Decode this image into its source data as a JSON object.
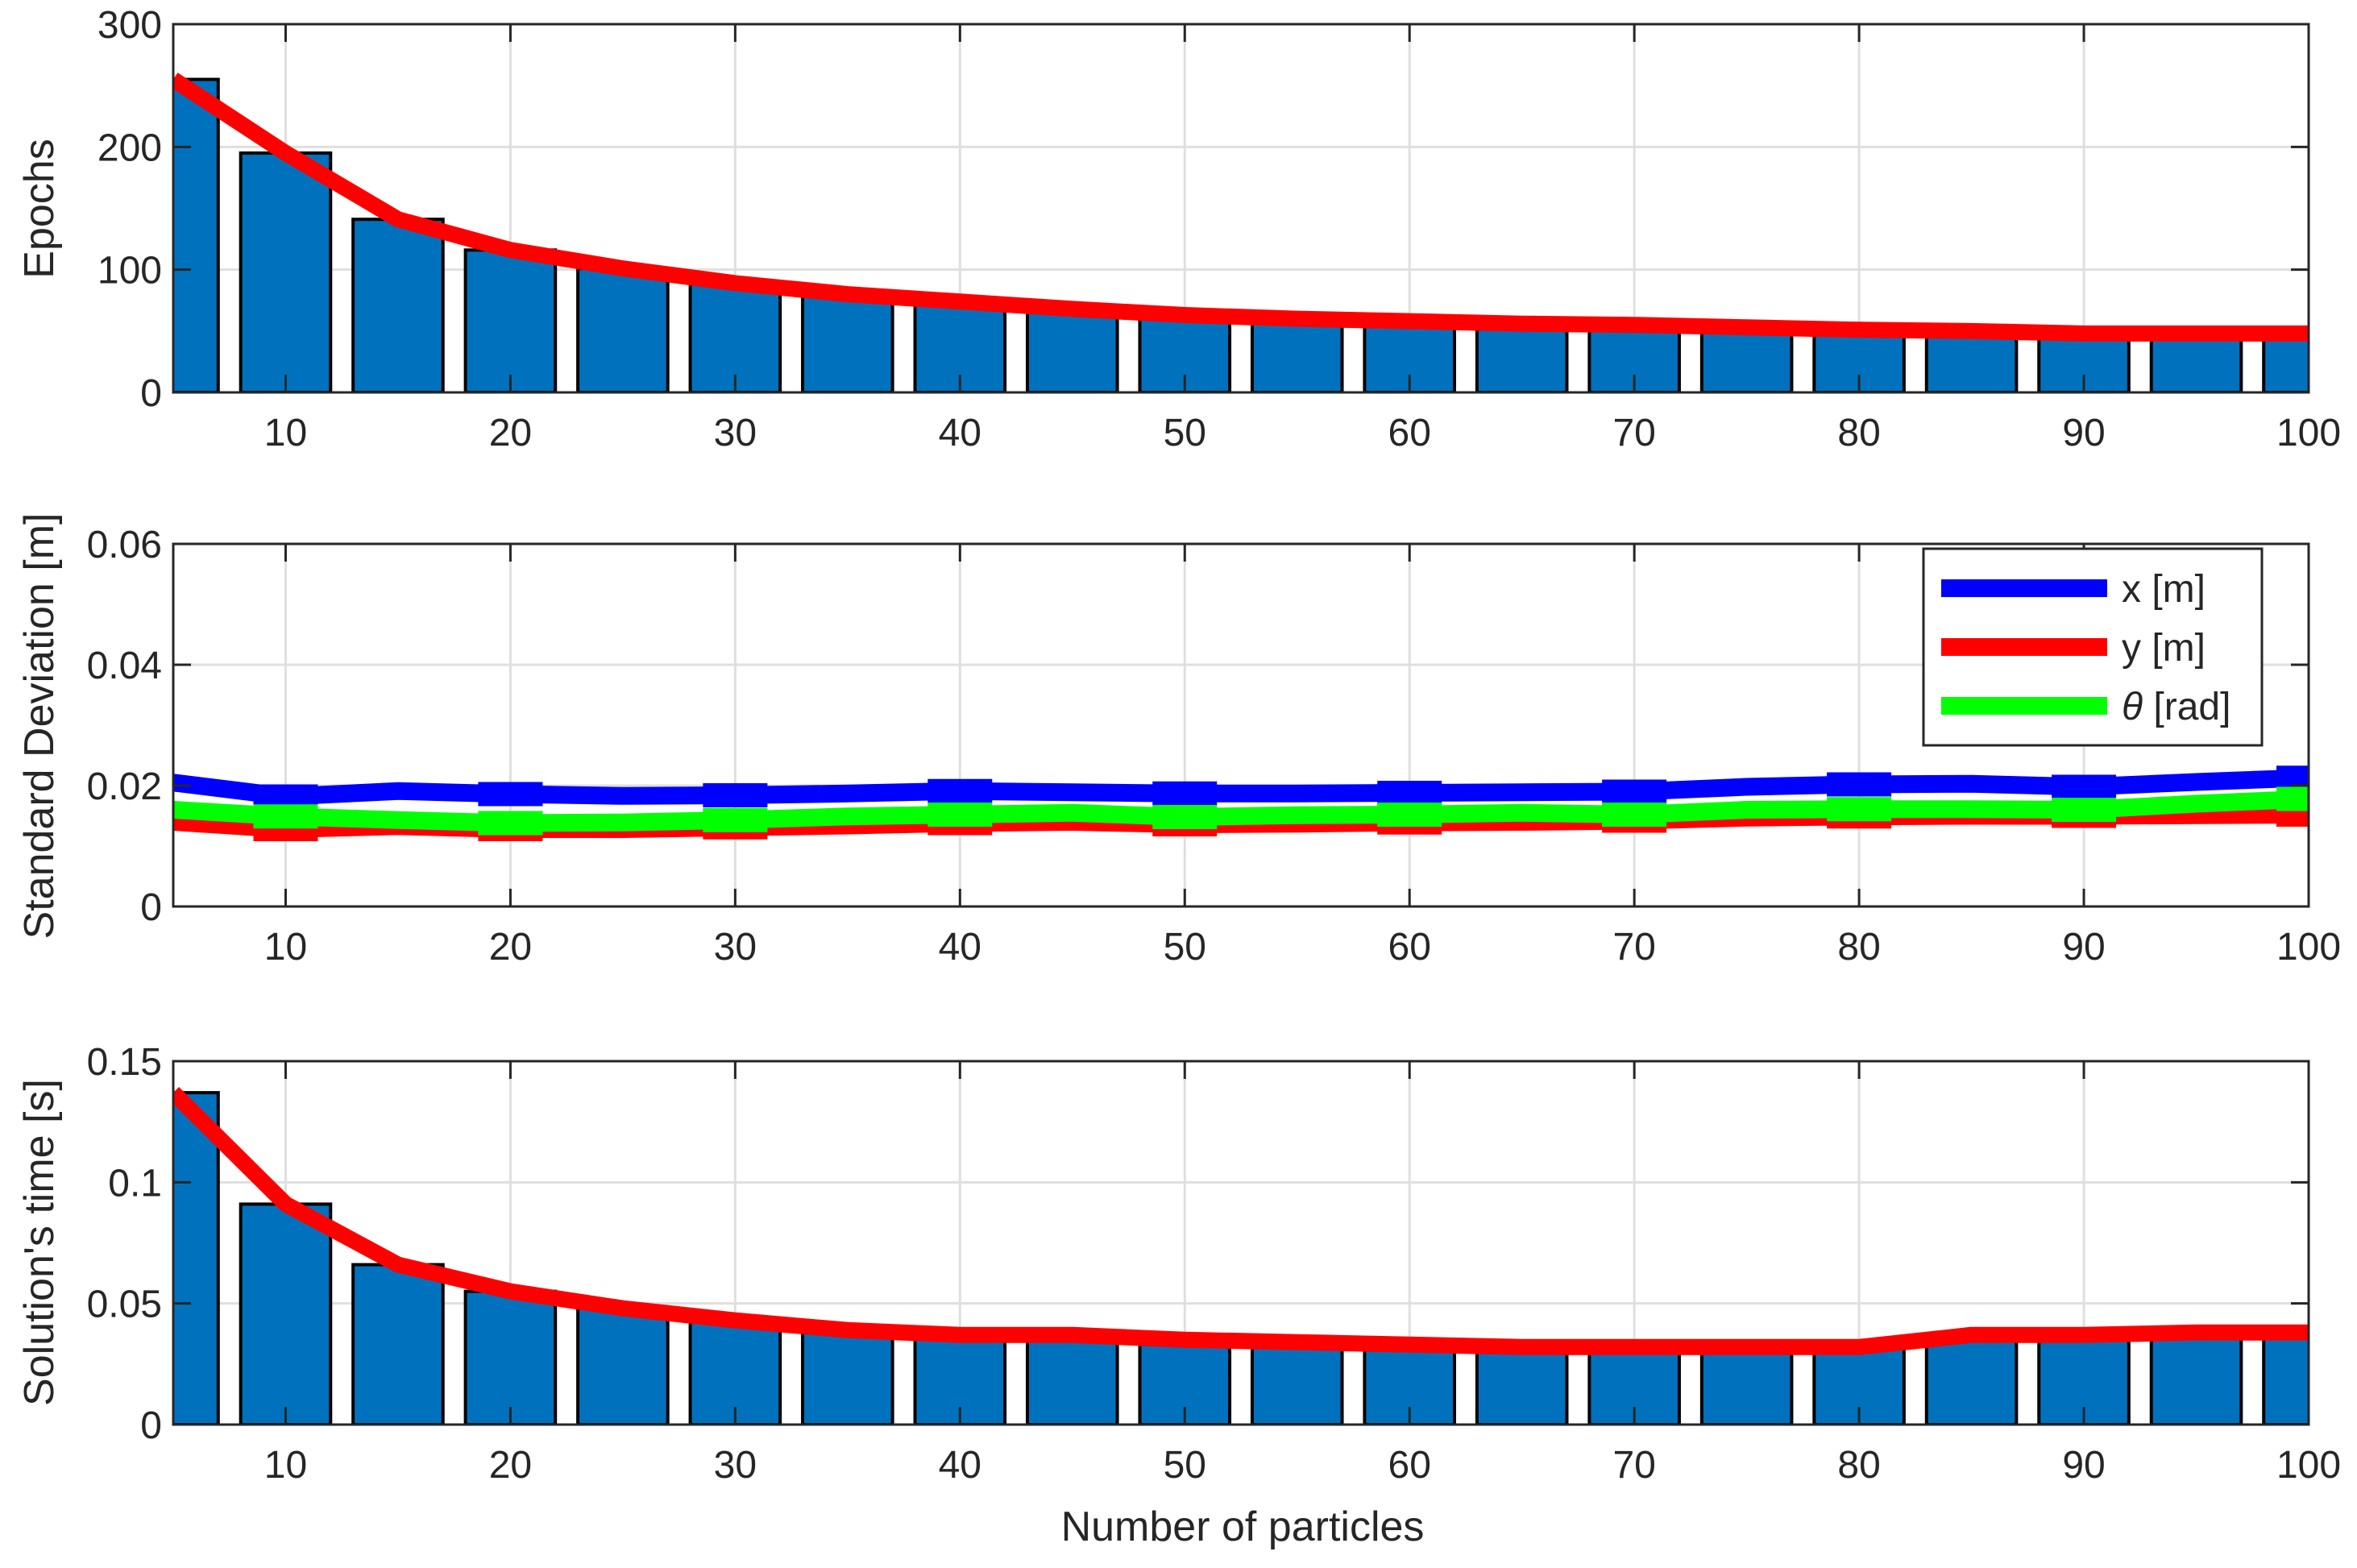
{
  "figure": {
    "xlabel": "Number of particles"
  },
  "colors": {
    "bar_fill": "#0072BD",
    "bar_edge": "#000000",
    "trend_line": "#FF0000",
    "series_x": "#0000FF",
    "series_y": "#FF0000",
    "series_theta": "#00FF00",
    "grid": "#DFDFDF",
    "axis": "#262626"
  },
  "chart_data": [
    {
      "type": "bar",
      "ylabel": "Epochs",
      "xlim": [
        5,
        100
      ],
      "ylim": [
        0,
        300
      ],
      "xticks": [
        10,
        20,
        30,
        40,
        50,
        60,
        70,
        80,
        90,
        100
      ],
      "yticks": [
        0,
        100,
        200,
        300
      ],
      "grid": true,
      "x": [
        5,
        10,
        15,
        20,
        25,
        30,
        35,
        40,
        45,
        50,
        55,
        60,
        65,
        70,
        75,
        80,
        85,
        90,
        95,
        100
      ],
      "series": [
        {
          "name": "bars",
          "style": "bar",
          "values": [
            255,
            195,
            141,
            116,
            101,
            89,
            80,
            74,
            68,
            63,
            60,
            58,
            56,
            55,
            53,
            51,
            50,
            48,
            48,
            48
          ]
        },
        {
          "name": "trend",
          "style": "line",
          "values": [
            255,
            195,
            141,
            116,
            101,
            89,
            80,
            74,
            68,
            63,
            60,
            58,
            56,
            55,
            53,
            51,
            50,
            48,
            48,
            48
          ]
        }
      ]
    },
    {
      "type": "line",
      "ylabel": "Standard Deviation [m]",
      "xlim": [
        5,
        100
      ],
      "ylim": [
        0,
        0.06
      ],
      "xticks": [
        10,
        20,
        30,
        40,
        50,
        60,
        70,
        80,
        90,
        100
      ],
      "yticks": [
        0,
        0.02,
        0.04,
        0.06
      ],
      "grid": true,
      "legend": "top-right",
      "x": [
        5,
        10,
        15,
        20,
        25,
        30,
        35,
        40,
        45,
        50,
        55,
        60,
        65,
        70,
        75,
        80,
        85,
        90,
        95,
        100
      ],
      "series": [
        {
          "name": "x [m]",
          "color_key": "series_x",
          "values": [
            0.0205,
            0.0182,
            0.0191,
            0.0186,
            0.0183,
            0.0184,
            0.0187,
            0.0191,
            0.0189,
            0.0187,
            0.0187,
            0.0188,
            0.0189,
            0.019,
            0.0198,
            0.0202,
            0.0203,
            0.0198,
            0.0206,
            0.0213
          ]
        },
        {
          "name": "y [m]",
          "color_key": "series_y",
          "values": [
            0.014,
            0.0128,
            0.0133,
            0.0128,
            0.0128,
            0.0131,
            0.0134,
            0.0138,
            0.014,
            0.0136,
            0.0137,
            0.0139,
            0.014,
            0.0142,
            0.0147,
            0.0149,
            0.015,
            0.015,
            0.0151,
            0.0152
          ]
        },
        {
          "name": "θ [rad]",
          "label_symbol": "θ",
          "label_rest": " [rad]",
          "color_key": "series_theta",
          "values": [
            0.016,
            0.0149,
            0.0143,
            0.0138,
            0.0139,
            0.0143,
            0.0149,
            0.0152,
            0.0155,
            0.0148,
            0.0151,
            0.0152,
            0.0155,
            0.0152,
            0.016,
            0.0161,
            0.0161,
            0.016,
            0.017,
            0.0178
          ]
        }
      ]
    },
    {
      "type": "bar",
      "ylabel": "Solution's time [s]",
      "xlim": [
        5,
        100
      ],
      "ylim": [
        0,
        0.15
      ],
      "xticks": [
        10,
        20,
        30,
        40,
        50,
        60,
        70,
        80,
        90,
        100
      ],
      "yticks": [
        0,
        0.05,
        0.1,
        0.15
      ],
      "grid": true,
      "x": [
        5,
        10,
        15,
        20,
        25,
        30,
        35,
        40,
        45,
        50,
        55,
        60,
        65,
        70,
        75,
        80,
        85,
        90,
        95,
        100
      ],
      "series": [
        {
          "name": "bars",
          "style": "bar",
          "values": [
            0.137,
            0.091,
            0.066,
            0.055,
            0.048,
            0.043,
            0.039,
            0.037,
            0.037,
            0.035,
            0.034,
            0.033,
            0.032,
            0.032,
            0.032,
            0.032,
            0.037,
            0.037,
            0.038,
            0.038
          ]
        },
        {
          "name": "trend",
          "style": "line",
          "values": [
            0.137,
            0.091,
            0.066,
            0.055,
            0.048,
            0.043,
            0.039,
            0.037,
            0.037,
            0.035,
            0.034,
            0.033,
            0.032,
            0.032,
            0.032,
            0.032,
            0.037,
            0.037,
            0.038,
            0.038
          ]
        }
      ]
    }
  ]
}
